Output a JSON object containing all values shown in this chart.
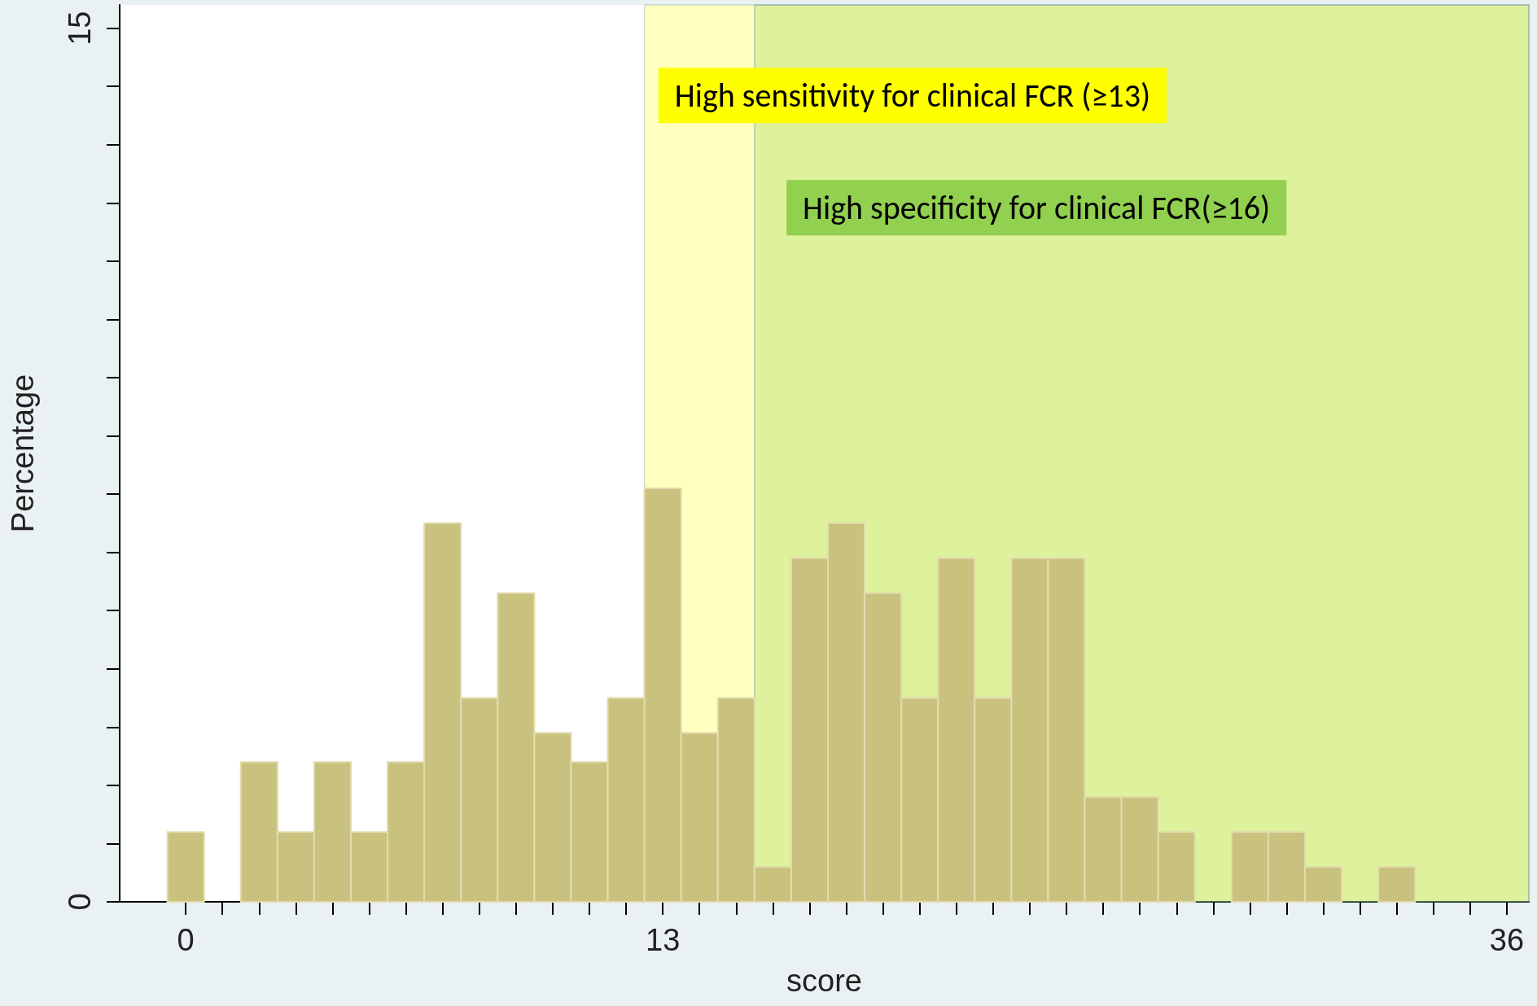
{
  "chart_data": {
    "type": "histogram",
    "xlabel": "score",
    "ylabel": "Percentage",
    "bins": [
      -0.5,
      0.5,
      1.5,
      2.5,
      3.5,
      4.5,
      5.5,
      6.5,
      7.5,
      8.5,
      9.5,
      10.5,
      11.5,
      12.5,
      13.5,
      14.5,
      15.5,
      16.5,
      17.5,
      18.5,
      19.5,
      20.5,
      21.5,
      22.5,
      23.5,
      24.5,
      25.5,
      26.5,
      27.5,
      28.5,
      29.5,
      30.5,
      31.5,
      32.5,
      33.5,
      34.5,
      35.5
    ],
    "values": [
      1.2,
      0,
      2.4,
      1.2,
      2.4,
      1.2,
      2.4,
      6.5,
      3.5,
      5.3,
      2.9,
      2.4,
      3.5,
      7.1,
      2.9,
      3.5,
      0.6,
      5.9,
      6.5,
      5.3,
      3.5,
      5.9,
      3.5,
      5.9,
      5.9,
      1.8,
      1.8,
      1.2,
      0,
      1.2,
      1.2,
      0.6,
      0,
      0.6,
      0,
      0
    ],
    "color": "#c9c27e",
    "xlim": [
      -1.8,
      36.6
    ],
    "ylim": [
      0,
      15.4
    ],
    "xticks": [
      0,
      {
        "value": 1,
        "label": null
      },
      {
        "value": 2,
        "label": null
      },
      {
        "value": 3,
        "label": null
      },
      {
        "value": 4,
        "label": null
      },
      {
        "value": 5,
        "label": null
      },
      {
        "value": 6,
        "label": null
      },
      {
        "value": 7,
        "label": null
      },
      {
        "value": 8,
        "label": null
      },
      {
        "value": 9,
        "label": null
      },
      {
        "value": 10,
        "label": null
      },
      {
        "value": 11,
        "label": null
      },
      {
        "value": 12,
        "label": null
      },
      13,
      {
        "value": 14,
        "label": null
      },
      {
        "value": 15,
        "label": null
      },
      {
        "value": 16,
        "label": null
      },
      {
        "value": 17,
        "label": null
      },
      {
        "value": 18,
        "label": null
      },
      {
        "value": 19,
        "label": null
      },
      {
        "value": 20,
        "label": null
      },
      {
        "value": 21,
        "label": null
      },
      {
        "value": 22,
        "label": null
      },
      {
        "value": 23,
        "label": null
      },
      {
        "value": 24,
        "label": null
      },
      {
        "value": 25,
        "label": null
      },
      {
        "value": 26,
        "label": null
      },
      {
        "value": 27,
        "label": null
      },
      {
        "value": 28,
        "label": null
      },
      {
        "value": 29,
        "label": null
      },
      {
        "value": 30,
        "label": null
      },
      {
        "value": 31,
        "label": null
      },
      {
        "value": 32,
        "label": null
      },
      {
        "value": 33,
        "label": null
      },
      {
        "value": 34,
        "label": null
      },
      {
        "value": 35,
        "label": null
      },
      36
    ],
    "yticks": [
      0,
      {
        "value": 1,
        "label": null
      },
      {
        "value": 2,
        "label": null
      },
      {
        "value": 3,
        "label": null
      },
      {
        "value": 4,
        "label": null
      },
      {
        "value": 5,
        "label": null
      },
      {
        "value": 6,
        "label": null
      },
      {
        "value": 7,
        "label": null
      },
      {
        "value": 8,
        "label": null
      },
      {
        "value": 9,
        "label": null
      },
      {
        "value": 10,
        "label": null
      },
      {
        "value": 11,
        "label": null
      },
      {
        "value": 12,
        "label": null
      },
      {
        "value": 13,
        "label": null
      },
      {
        "value": 14,
        "label": null
      },
      15
    ],
    "bands": [
      {
        "axis": "x",
        "from": 12.5,
        "to": 36.6,
        "label": "High sensitivity for clinical FCR (≥13)",
        "color": "#ffff00"
      },
      {
        "axis": "x",
        "from": 15.5,
        "to": 36.6,
        "label": "High specificity for clinical FCR(≥16)",
        "color": "#92d050"
      }
    ],
    "grid": false
  }
}
